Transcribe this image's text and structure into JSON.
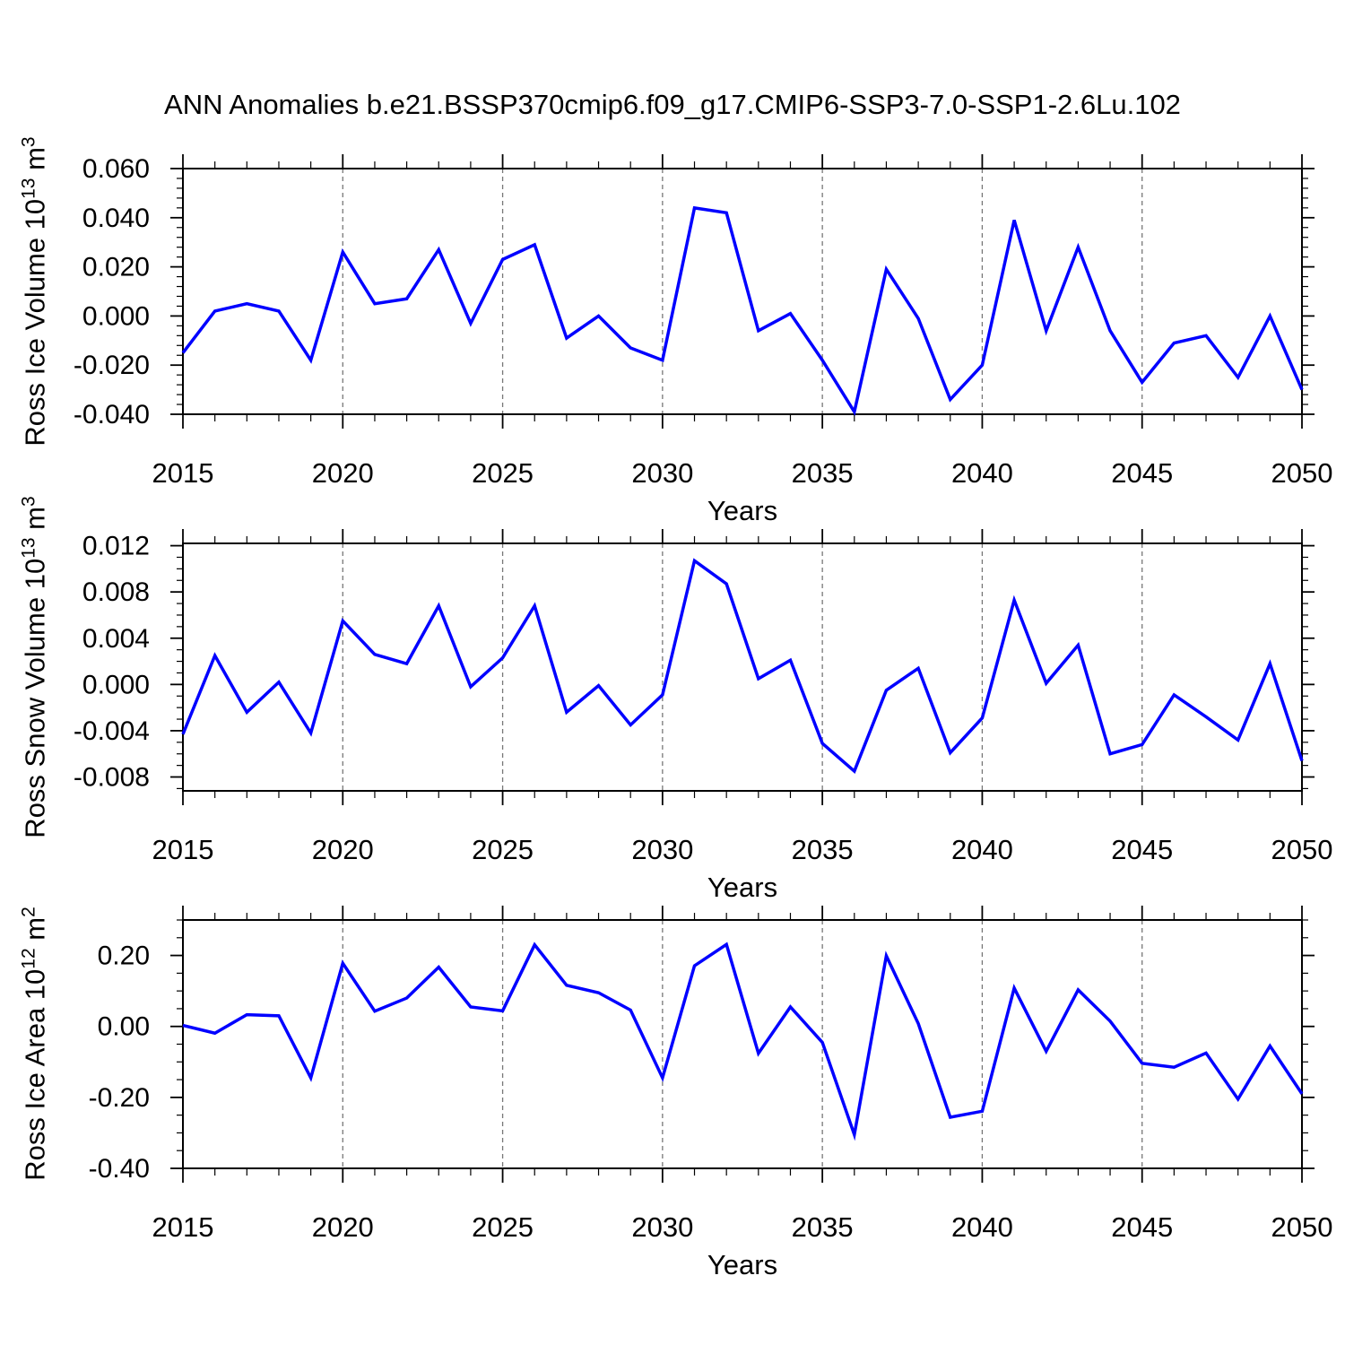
{
  "title": "ANN Anomalies b.e21.BSSP370cmip6.f09_g17.CMIP6-SSP3-7.0-SSP1-2.6Lu.102",
  "colors": {
    "line": "#0000ff",
    "frame": "#000000",
    "grid": "#777777",
    "text": "#000000"
  },
  "chart_data": [
    {
      "type": "line",
      "id": "ross-ice-volume",
      "ylabel": {
        "base": "Ross Ice Volume 10",
        "exp": "13",
        "unit": " m",
        "unit_exp": "3"
      },
      "xlabel": "Years",
      "x": [
        2015,
        2016,
        2017,
        2018,
        2019,
        2020,
        2021,
        2022,
        2023,
        2024,
        2025,
        2026,
        2027,
        2028,
        2029,
        2030,
        2031,
        2032,
        2033,
        2034,
        2035,
        2036,
        2037,
        2038,
        2039,
        2040,
        2041,
        2042,
        2043,
        2044,
        2045,
        2046,
        2047,
        2048,
        2049,
        2050
      ],
      "values": [
        -0.015,
        0.002,
        0.005,
        0.002,
        -0.018,
        0.026,
        0.005,
        0.007,
        0.027,
        -0.003,
        0.023,
        0.029,
        -0.009,
        0.0,
        -0.013,
        -0.018,
        0.044,
        0.042,
        -0.006,
        0.001,
        -0.018,
        -0.039,
        0.019,
        -0.001,
        -0.034,
        -0.02,
        0.039,
        -0.006,
        0.028,
        -0.006,
        -0.027,
        -0.011,
        -0.008,
        -0.025,
        0.0,
        -0.03
      ],
      "xlim": [
        2015,
        2050
      ],
      "ylim": [
        -0.04,
        0.06
      ],
      "xticks": [
        2015,
        2020,
        2025,
        2030,
        2035,
        2040,
        2045,
        2050
      ],
      "x_gridlines": [
        2020,
        2025,
        2030,
        2035,
        2040,
        2045
      ],
      "yticks": [
        0.06,
        0.04,
        0.02,
        0.0,
        -0.02,
        -0.04
      ],
      "ytick_labels": [
        "0.060",
        "0.040",
        "0.020",
        "0.000",
        "-0.020",
        "-0.040"
      ],
      "y_minor_step": 0.004,
      "grid": "vertical-dashed",
      "legend": "none"
    },
    {
      "type": "line",
      "id": "ross-snow-volume",
      "ylabel": {
        "base": "Ross Snow Volume 10",
        "exp": "13",
        "unit": " m",
        "unit_exp": "3"
      },
      "xlabel": "Years",
      "x": [
        2015,
        2016,
        2017,
        2018,
        2019,
        2020,
        2021,
        2022,
        2023,
        2024,
        2025,
        2026,
        2027,
        2028,
        2029,
        2030,
        2031,
        2032,
        2033,
        2034,
        2035,
        2036,
        2037,
        2038,
        2039,
        2040,
        2041,
        2042,
        2043,
        2044,
        2045,
        2046,
        2047,
        2048,
        2049,
        2050
      ],
      "values": [
        -0.0043,
        0.0025,
        -0.0024,
        0.0002,
        -0.0042,
        0.0055,
        0.0026,
        0.0018,
        0.0068,
        -0.0002,
        0.0023,
        0.0068,
        -0.0024,
        -0.0001,
        -0.0035,
        -0.0009,
        0.0107,
        0.0087,
        0.0005,
        0.0021,
        -0.0051,
        -0.0075,
        -0.0005,
        0.0014,
        -0.0059,
        -0.0029,
        0.0073,
        0.0001,
        0.0034,
        -0.006,
        -0.0052,
        -0.0009,
        -0.0028,
        -0.0048,
        0.0018,
        -0.0066
      ],
      "xlim": [
        2015,
        2050
      ],
      "ylim": [
        -0.0092,
        0.0122
      ],
      "xticks": [
        2015,
        2020,
        2025,
        2030,
        2035,
        2040,
        2045,
        2050
      ],
      "x_gridlines": [
        2020,
        2025,
        2030,
        2035,
        2040,
        2045
      ],
      "yticks": [
        0.012,
        0.008,
        0.004,
        0.0,
        -0.004,
        -0.008
      ],
      "ytick_labels": [
        "0.012",
        "0.008",
        "0.004",
        "0.000",
        "-0.004",
        "-0.008"
      ],
      "y_minor_step": 0.001,
      "grid": "vertical-dashed",
      "legend": "none"
    },
    {
      "type": "line",
      "id": "ross-ice-area",
      "ylabel": {
        "base": "Ross Ice Area 10",
        "exp": "12",
        "unit": " m",
        "unit_exp": "2"
      },
      "xlabel": "Years",
      "x": [
        2015,
        2016,
        2017,
        2018,
        2019,
        2020,
        2021,
        2022,
        2023,
        2024,
        2025,
        2026,
        2027,
        2028,
        2029,
        2030,
        2031,
        2032,
        2033,
        2034,
        2035,
        2036,
        2037,
        2038,
        2039,
        2040,
        2041,
        2042,
        2043,
        2044,
        2045,
        2046,
        2047,
        2048,
        2049,
        2050
      ],
      "values": [
        0.003,
        -0.019,
        0.033,
        0.03,
        -0.145,
        0.178,
        0.043,
        0.08,
        0.167,
        0.055,
        0.044,
        0.23,
        0.116,
        0.095,
        0.046,
        -0.145,
        0.171,
        0.231,
        -0.076,
        0.055,
        -0.045,
        -0.305,
        0.199,
        0.008,
        -0.256,
        -0.239,
        0.108,
        -0.07,
        0.103,
        0.015,
        -0.104,
        -0.115,
        -0.075,
        -0.205,
        -0.055,
        -0.19
      ],
      "xlim": [
        2015,
        2050
      ],
      "ylim": [
        -0.4,
        0.3
      ],
      "xticks": [
        2015,
        2020,
        2025,
        2030,
        2035,
        2040,
        2045,
        2050
      ],
      "x_gridlines": [
        2020,
        2025,
        2030,
        2035,
        2040,
        2045
      ],
      "yticks": [
        0.2,
        0.0,
        -0.2,
        -0.4
      ],
      "ytick_labels": [
        "0.20",
        "0.00",
        "-0.20",
        "-0.40"
      ],
      "y_minor_step": 0.05,
      "grid": "vertical-dashed",
      "legend": "none"
    }
  ]
}
